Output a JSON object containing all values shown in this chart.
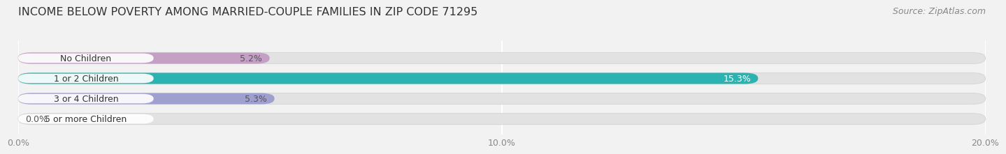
{
  "title": "INCOME BELOW POVERTY AMONG MARRIED-COUPLE FAMILIES IN ZIP CODE 71295",
  "source": "Source: ZipAtlas.com",
  "categories": [
    "No Children",
    "1 or 2 Children",
    "3 or 4 Children",
    "5 or more Children"
  ],
  "values": [
    5.2,
    15.3,
    5.3,
    0.0
  ],
  "bar_colors": [
    "#c4a0c4",
    "#2ab3b0",
    "#a0a0d0",
    "#f4a0b8"
  ],
  "value_label_colors": [
    "#555555",
    "#ffffff",
    "#555555",
    "#555555"
  ],
  "value_label_inside": [
    true,
    true,
    true,
    false
  ],
  "background_color": "#f2f2f2",
  "bar_background_color": "#e2e2e2",
  "bar_background_border": "#d8d8d8",
  "xlim": [
    0,
    20.0
  ],
  "xticks": [
    0.0,
    10.0,
    20.0
  ],
  "xticklabels": [
    "0.0%",
    "10.0%",
    "20.0%"
  ],
  "title_fontsize": 11.5,
  "source_fontsize": 9,
  "label_fontsize": 9,
  "tick_fontsize": 9,
  "bar_label_fontsize": 9
}
